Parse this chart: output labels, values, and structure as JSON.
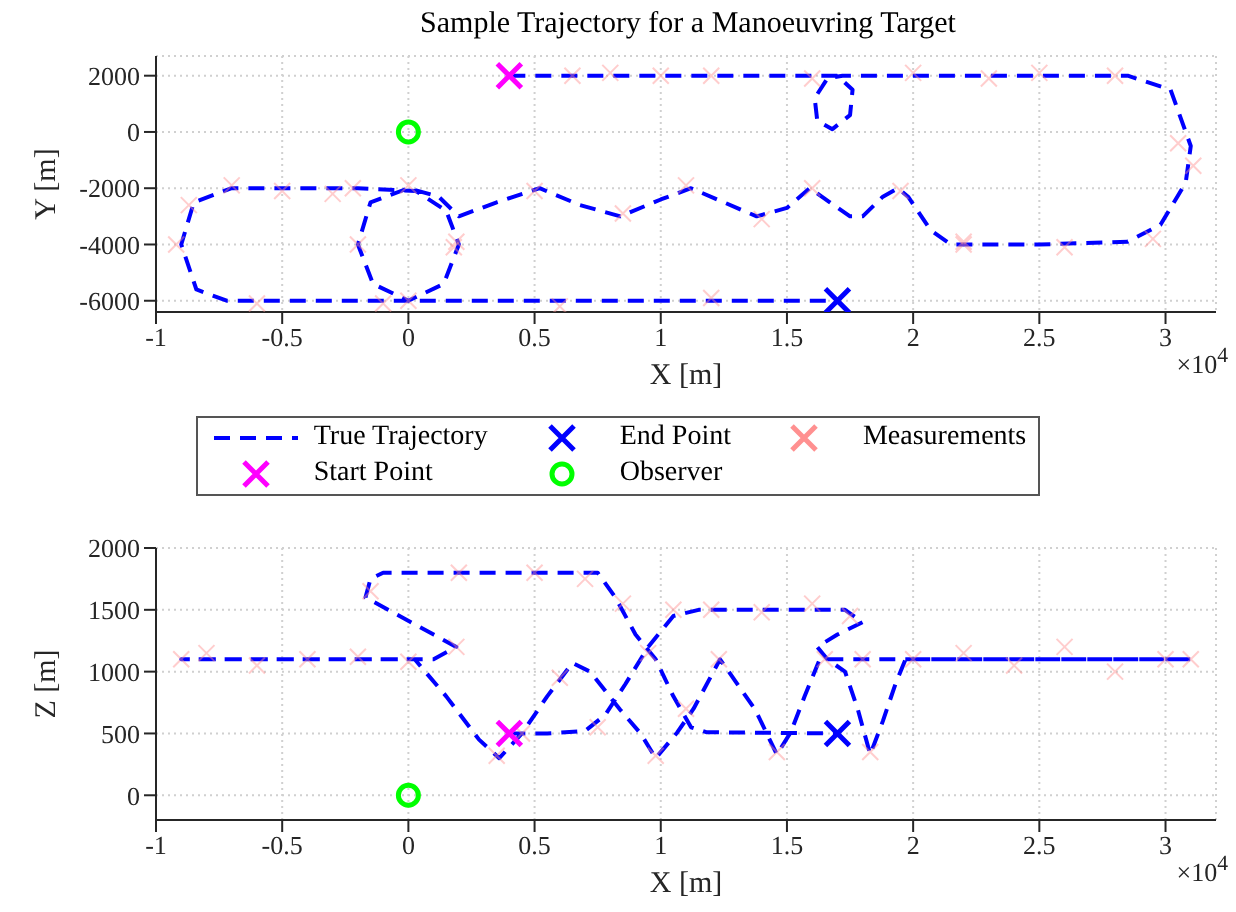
{
  "chart_data": [
    {
      "type": "line",
      "title": "Sample Trajectory for a Manoeuvring Target",
      "xlabel": "X [m]",
      "ylabel": "Y [m]",
      "annotations": [
        "×10$^{4}$"
      ],
      "xlim": [
        -1,
        3.2
      ],
      "xticks": [
        -1,
        -0.5,
        0,
        0.5,
        1,
        1.5,
        2,
        2.5,
        3
      ],
      "ylim": [
        -6400,
        2700
      ],
      "yticks": [
        -6000,
        -4000,
        -2000,
        0,
        2000
      ],
      "grid": true,
      "legend": "bottom",
      "series": [
        {
          "name": "True Trajectory",
          "color": "#0000ff",
          "line_style": "dashed",
          "marker": "none",
          "x": [
            0.4,
            1,
            1.6,
            1.7,
            1.76,
            1.75,
            1.68,
            1.62,
            1.61,
            1.66,
            1.72,
            2,
            2.5,
            2.85,
            3.02,
            3.1,
            3.08,
            2.98,
            2.85,
            2.5,
            2.15,
            2.07,
            1.98,
            1.94,
            1.88,
            1.8,
            1.75,
            1.67,
            1.59,
            1.5,
            1.38,
            1.25,
            1.12,
            1,
            0.84,
            0.68,
            0.52,
            0.35,
            0.2,
            0.12,
            0,
            -0.15,
            -0.2,
            -0.14,
            0,
            0.14,
            0.2,
            0.15,
            0.03,
            -0.2,
            -0.5,
            -0.7,
            -0.85,
            -0.9,
            -0.84,
            -0.72,
            0,
            1,
            1.7
          ],
          "values": [
            2000,
            2000,
            2000,
            2000,
            1500,
            600,
            100,
            400,
            1200,
            1900,
            2000,
            2000,
            2000,
            2000,
            1500,
            -500,
            -1800,
            -3300,
            -3900,
            -4000,
            -4000,
            -3500,
            -2300,
            -2000,
            -2300,
            -3000,
            -3000,
            -2500,
            -2000,
            -2700,
            -3000,
            -2500,
            -2000,
            -2400,
            -3000,
            -2600,
            -2000,
            -2500,
            -3000,
            -2300,
            -2000,
            -2500,
            -4000,
            -5400,
            -6000,
            -5400,
            -4000,
            -2800,
            -2100,
            -2000,
            -2000,
            -2000,
            -2500,
            -4000,
            -5600,
            -6000,
            -6000,
            -6000,
            -6000
          ]
        },
        {
          "name": "Start Point",
          "type": "scatter",
          "color": "#ff00ff",
          "marker": "cross",
          "x": [
            0.4
          ],
          "values": [
            2000
          ]
        },
        {
          "name": "End Point",
          "type": "scatter",
          "color": "#0000ff",
          "marker": "cross",
          "x": [
            1.7
          ],
          "values": [
            -6000
          ]
        },
        {
          "name": "Observer",
          "type": "scatter",
          "color": "#00ff00",
          "marker": "circle",
          "x": [
            0
          ],
          "values": [
            0
          ]
        },
        {
          "name": "Measurements",
          "type": "scatter",
          "color": "#ff9090",
          "marker": "cross",
          "x": [
            -0.92,
            -0.87,
            -0.7,
            -0.5,
            -0.3,
            -0.1,
            0.18,
            0.5,
            0.85,
            1.1,
            1.4,
            1.6,
            1.95,
            2.2,
            2.5,
            2.8,
            3.05,
            3.11,
            2.95,
            2.6,
            2.3,
            2,
            1.6,
            1.2,
            0.8,
            0.65,
            0,
            -0.2,
            -0.6,
            -0.22,
            0.19,
            0,
            0.6,
            1.2,
            1,
            2.2
          ],
          "values": [
            -4000,
            -2600,
            -1900,
            -2100,
            -2200,
            -6100,
            -4100,
            -2100,
            -2900,
            -1900,
            -3100,
            -2000,
            -2100,
            -3900,
            2100,
            2000,
            -400,
            -1200,
            -3800,
            -4100,
            1900,
            2100,
            1900,
            2000,
            2100,
            2000,
            -1900,
            -4000,
            -6100,
            -2000,
            -3900,
            -6000,
            -6200,
            -5900,
            2000,
            -4000
          ]
        }
      ]
    },
    {
      "type": "line",
      "xlabel": "X [m]",
      "ylabel": "Z [m]",
      "annotations": [
        "×10$^{4}$"
      ],
      "xlim": [
        -1,
        3.2
      ],
      "xticks": [
        -1,
        -0.5,
        0,
        0.5,
        1,
        1.5,
        2,
        2.5,
        3
      ],
      "ylim": [
        -200,
        2000
      ],
      "yticks": [
        0,
        500,
        1000,
        1500,
        2000
      ],
      "grid": true,
      "series": [
        {
          "color": "#0000ff",
          "line_style": "dashed",
          "marker": "none",
          "x": [
            0.4,
            0.55,
            0.7,
            0.78,
            0.86,
            0.95,
            1.05,
            1.15,
            1.73,
            1.8,
            1.7,
            1.62,
            1.66,
            1.73,
            1.78,
            1.83,
            1.88,
            1.93,
            1.97,
            2.5,
            3.1,
            2.5,
            1.63,
            1.57,
            1.515,
            1.46,
            1.375,
            1.235,
            1.13,
            1.066,
            0.98,
            0.92,
            0.84,
            0.72,
            0.65,
            0.55,
            0.45,
            0.36,
            0.28,
            0.15,
            0.025,
            -0.4,
            -0.9,
            -0.4,
            0.1,
            0.19,
            0.1,
            -0.17,
            -0.15,
            -0.1,
            0.75,
            0.82,
            0.9,
            0.98,
            1.05,
            1.12,
            1.18,
            1.7
          ],
          "values": [
            500,
            500,
            520,
            650,
            900,
            1200,
            1450,
            1500,
            1500,
            1400,
            1300,
            1200,
            1100,
            1000,
            700,
            330,
            600,
            900,
            1100,
            1100,
            1100,
            1100,
            1100,
            800,
            510,
            330,
            690,
            1100,
            700,
            510,
            300,
            500,
            690,
            1000,
            1070,
            800,
            500,
            300,
            450,
            800,
            1100,
            1100,
            1100,
            1100,
            1100,
            1200,
            1300,
            1600,
            1750,
            1800,
            1800,
            1600,
            1300,
            1100,
            800,
            550,
            510,
            500
          ]
        },
        {
          "type": "scatter",
          "color": "#ff00ff",
          "marker": "cross",
          "x": [
            0.4
          ],
          "values": [
            500
          ]
        },
        {
          "type": "scatter",
          "color": "#0000ff",
          "marker": "cross",
          "x": [
            1.7
          ],
          "values": [
            500
          ]
        },
        {
          "type": "scatter",
          "color": "#00ff00",
          "marker": "circle",
          "x": [
            0
          ],
          "values": [
            0
          ]
        },
        {
          "type": "scatter",
          "color": "#ff9090",
          "marker": "cross",
          "x": [
            -0.9,
            -0.8,
            -0.6,
            -0.4,
            -0.2,
            0,
            0.19,
            -0.15,
            0.2,
            0.5,
            0.7,
            0.85,
            0.95,
            1.05,
            1.2,
            1.4,
            1.6,
            1.75,
            1.8,
            2,
            2.2,
            2.4,
            2.6,
            2.8,
            3,
            3.1,
            0.35,
            0.6,
            0.98,
            1.23,
            1.46,
            1.65,
            1.83,
            1.1,
            0.45,
            0.75
          ],
          "values": [
            1100,
            1150,
            1050,
            1100,
            1120,
            1080,
            1200,
            1650,
            1800,
            1800,
            1750,
            1550,
            1150,
            1500,
            1500,
            1480,
            1550,
            1450,
            1100,
            1100,
            1150,
            1050,
            1200,
            1000,
            1100,
            1100,
            320,
            950,
            320,
            1100,
            350,
            1100,
            350,
            700,
            500,
            550
          ]
        }
      ]
    }
  ]
}
